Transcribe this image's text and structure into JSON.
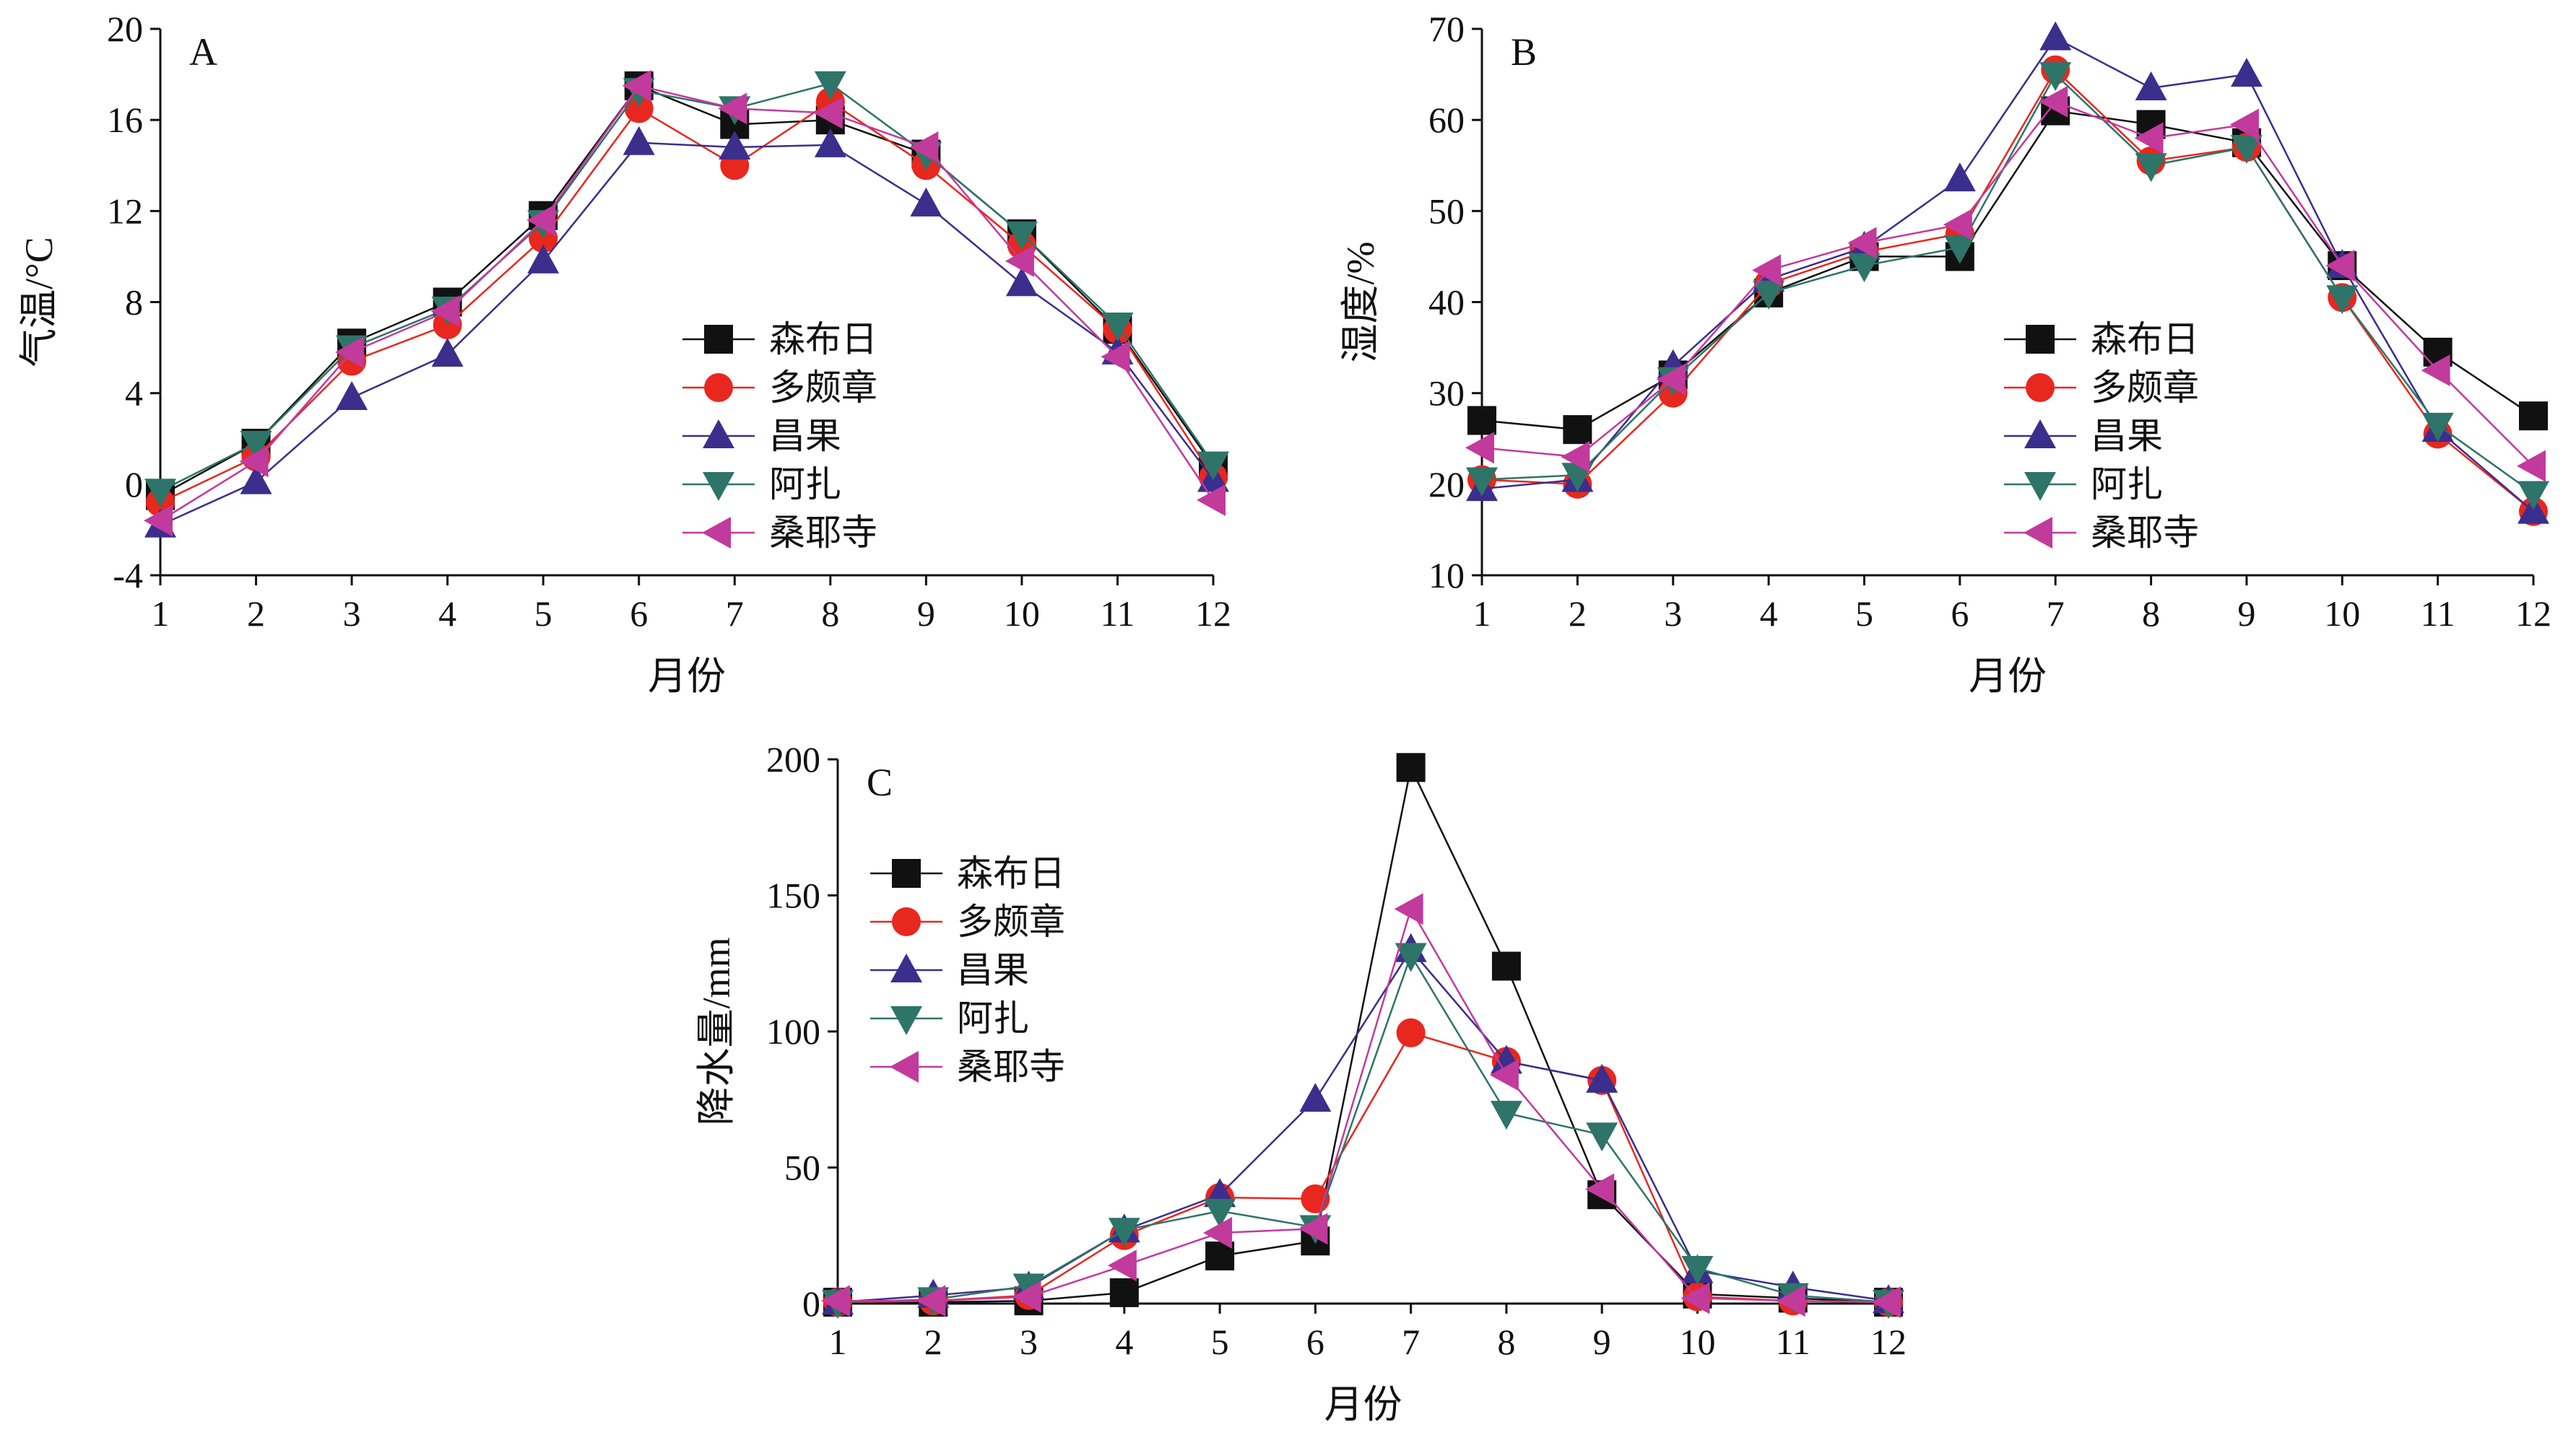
{
  "figure": {
    "colors": {
      "森布日": "#111111",
      "多颇章": "#e8271f",
      "昌果": "#3b2e8c",
      "阿扎": "#2e7468",
      "桑耶寺": "#c23a9c"
    },
    "markers": {
      "森布日": "square",
      "多颇章": "circle",
      "昌果": "triangle-up",
      "阿扎": "triangle-down",
      "桑耶寺": "triangle-left"
    }
  },
  "chart_data": [
    {
      "id": "A",
      "type": "line",
      "panel_label": "A",
      "xlabel": "月份",
      "ylabel": "气温/°C",
      "xlim": [
        1,
        12
      ],
      "ylim": [
        -4,
        20
      ],
      "x": [
        1,
        2,
        3,
        4,
        5,
        6,
        7,
        8,
        9,
        10,
        11,
        12
      ],
      "xticks": [
        "1",
        "2",
        "3",
        "4",
        "5",
        "6",
        "7",
        "8",
        "9",
        "10",
        "11",
        "12"
      ],
      "yticks": [
        -4,
        0,
        4,
        8,
        12,
        16,
        20
      ],
      "ytick_labels": [
        "-4",
        "0",
        "4",
        "8",
        "12",
        "16",
        "20"
      ],
      "legend": "center-right",
      "grid": false,
      "series": [
        {
          "name": "森布日",
          "values": [
            -0.5,
            1.8,
            6.2,
            8.0,
            11.8,
            17.5,
            15.8,
            16.0,
            14.5,
            11.0,
            6.8,
            0.8
          ]
        },
        {
          "name": "多颇章",
          "values": [
            -0.8,
            1.2,
            5.4,
            7.0,
            10.8,
            16.5,
            14.0,
            16.8,
            14.0,
            10.5,
            6.8,
            0.3
          ]
        },
        {
          "name": "昌果",
          "values": [
            -1.8,
            0.1,
            3.8,
            5.7,
            9.8,
            15.0,
            14.8,
            14.9,
            12.3,
            8.8,
            5.8,
            0.2
          ]
        },
        {
          "name": "阿扎",
          "values": [
            -0.3,
            1.8,
            6.0,
            7.7,
            11.5,
            17.3,
            16.5,
            17.6,
            14.5,
            11.0,
            7.0,
            0.9
          ]
        },
        {
          "name": "桑耶寺",
          "values": [
            -1.6,
            1.0,
            5.8,
            7.6,
            11.6,
            17.5,
            16.5,
            16.3,
            14.8,
            9.8,
            5.6,
            -0.7
          ]
        }
      ]
    },
    {
      "id": "B",
      "type": "line",
      "panel_label": "B",
      "xlabel": "月份",
      "ylabel": "湿度/%",
      "xlim": [
        1,
        12
      ],
      "ylim": [
        10,
        70
      ],
      "x": [
        1,
        2,
        3,
        4,
        5,
        6,
        7,
        8,
        9,
        10,
        11,
        12
      ],
      "xticks": [
        "1",
        "2",
        "3",
        "4",
        "5",
        "6",
        "7",
        "8",
        "9",
        "10",
        "11",
        "12"
      ],
      "yticks": [
        10,
        20,
        30,
        40,
        50,
        60,
        70
      ],
      "ytick_labels": [
        "10",
        "20",
        "30",
        "40",
        "50",
        "60",
        "70"
      ],
      "legend": "center-right",
      "grid": false,
      "series": [
        {
          "name": "森布日",
          "values": [
            27.0,
            26.0,
            32.0,
            41.0,
            45.0,
            45.0,
            61.0,
            59.5,
            57.5,
            44.0,
            34.5,
            27.5
          ]
        },
        {
          "name": "多颇章",
          "values": [
            20.5,
            20.0,
            30.0,
            42.0,
            45.5,
            47.5,
            65.5,
            55.5,
            57.0,
            40.5,
            25.5,
            17.0
          ]
        },
        {
          "name": "昌果",
          "values": [
            19.5,
            20.5,
            33.0,
            42.5,
            46.0,
            53.5,
            69.0,
            63.5,
            65.0,
            44.0,
            26.0,
            17.0
          ]
        },
        {
          "name": "阿扎",
          "values": [
            20.5,
            21.0,
            31.5,
            41.0,
            44.0,
            46.0,
            65.0,
            55.0,
            57.0,
            40.5,
            26.5,
            19.0
          ]
        },
        {
          "name": "桑耶寺",
          "values": [
            24.0,
            23.0,
            31.5,
            43.5,
            46.5,
            48.5,
            62.0,
            58.0,
            59.5,
            44.0,
            32.5,
            22.0
          ]
        }
      ]
    },
    {
      "id": "C",
      "type": "line",
      "panel_label": "C",
      "xlabel": "月份",
      "ylabel": "降水量/mm",
      "xlim": [
        1,
        12
      ],
      "ylim": [
        0,
        200
      ],
      "x": [
        1,
        2,
        3,
        4,
        5,
        6,
        7,
        8,
        9,
        10,
        11,
        12
      ],
      "xticks": [
        "1",
        "2",
        "3",
        "4",
        "5",
        "6",
        "7",
        "8",
        "9",
        "10",
        "11",
        "12"
      ],
      "yticks": [
        0,
        50,
        100,
        150,
        200
      ],
      "ytick_labels": [
        "0",
        "50",
        "100",
        "150",
        "200"
      ],
      "legend": "top-left",
      "grid": false,
      "series": [
        {
          "name": "森布日",
          "values": [
            0.5,
            0.5,
            1.0,
            4.0,
            17.5,
            23.0,
            197.0,
            124.0,
            40.0,
            3.5,
            2.0,
            0.5
          ]
        },
        {
          "name": "多颇章",
          "values": [
            0.5,
            1.0,
            3.0,
            25.0,
            39.0,
            38.5,
            99.5,
            89.0,
            82.0,
            2.5,
            1.0,
            0.5
          ]
        },
        {
          "name": "昌果",
          "values": [
            0.5,
            3.0,
            6.0,
            27.0,
            40.0,
            75.0,
            130.0,
            89.0,
            82.0,
            12.0,
            6.0,
            1.0
          ]
        },
        {
          "name": "阿扎",
          "values": [
            0.5,
            1.5,
            6.5,
            27.0,
            34.0,
            28.0,
            128.0,
            70.0,
            62.0,
            13.0,
            3.0,
            0.5
          ]
        },
        {
          "name": "桑耶寺",
          "values": [
            1.0,
            1.0,
            2.5,
            14.0,
            26.0,
            27.5,
            145.0,
            84.0,
            42.0,
            2.0,
            1.0,
            0.5
          ]
        }
      ]
    }
  ]
}
